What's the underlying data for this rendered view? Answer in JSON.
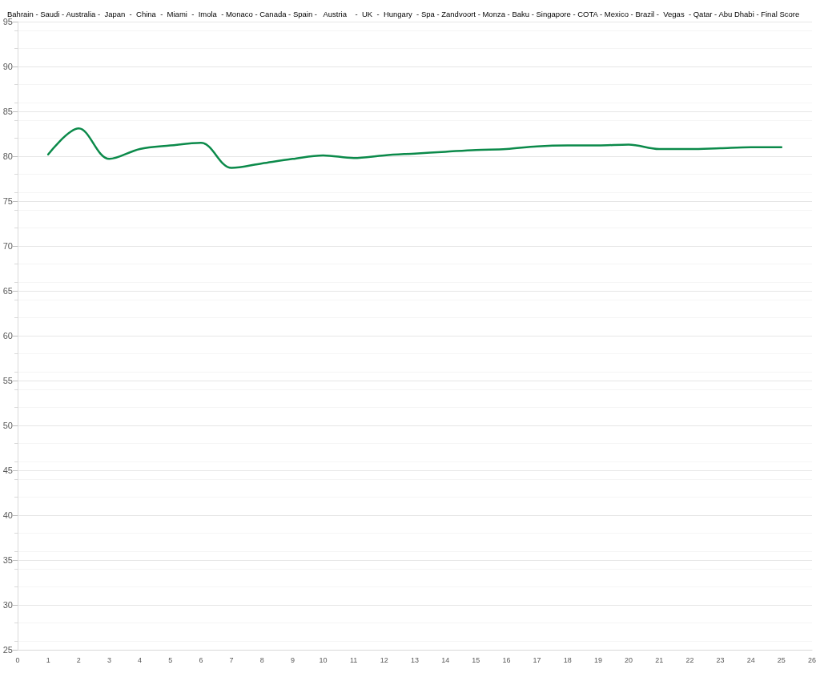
{
  "chart_data": {
    "type": "line",
    "title": "Bahrain - Saudi - Australia -  Japan  -  China  -  Miami  -  Imola  - Monaco - Canada - Spain -   Austria    -  UK  -  Hungary  - Spa - Zandvoort - Monza - Baku - Singapore - COTA - Mexico - Brazil -  Vegas  - Qatar - Abu Dhabi - Final Score",
    "x": [
      1,
      2,
      3,
      4,
      5,
      6,
      7,
      8,
      9,
      10,
      11,
      12,
      13,
      14,
      15,
      16,
      17,
      18,
      19,
      20,
      21,
      22,
      23,
      24,
      25
    ],
    "series": [
      {
        "color": "#0b8a4a",
        "values": [
          80.2,
          83.1,
          79.7,
          80.8,
          81.2,
          81.5,
          78.7,
          79.2,
          79.7,
          80.1,
          79.8,
          80.1,
          80.3,
          80.5,
          80.7,
          80.8,
          81.1,
          81.2,
          81.2,
          81.3,
          80.8,
          80.8,
          80.9,
          81.0,
          81.0
        ]
      }
    ],
    "xlim": [
      0,
      26
    ],
    "xticks": [
      0,
      1,
      2,
      3,
      4,
      5,
      6,
      7,
      8,
      9,
      10,
      11,
      12,
      13,
      14,
      15,
      16,
      17,
      18,
      19,
      20,
      21,
      22,
      23,
      24,
      25,
      26
    ],
    "ylim": [
      25,
      95
    ],
    "yticks": [
      25,
      30,
      35,
      40,
      45,
      50,
      55,
      60,
      65,
      70,
      75,
      80,
      85,
      90,
      95
    ],
    "grid": "y",
    "marker": "none",
    "line_style": "solid"
  }
}
